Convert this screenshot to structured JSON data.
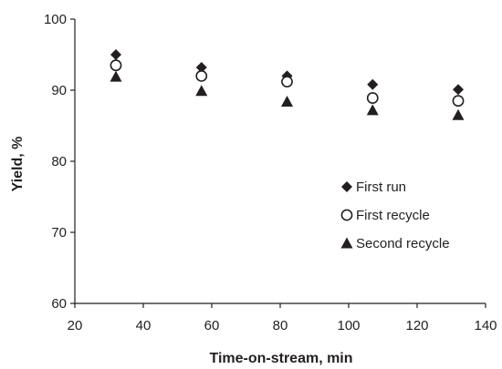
{
  "chart_data": {
    "type": "scatter",
    "title": "",
    "xlabel": "Time-on-stream, min",
    "ylabel": "Yield, %",
    "xlim": [
      20,
      140
    ],
    "ylim": [
      60,
      100
    ],
    "x_ticks": [
      "20",
      "40",
      "60",
      "80",
      "100",
      "120",
      "140"
    ],
    "y_ticks": [
      "60",
      "70",
      "80",
      "90",
      "100"
    ],
    "grid": false,
    "legend_position": "center-right",
    "series": [
      {
        "name": "First run",
        "marker": "diamond",
        "color": "#231f20",
        "x": [
          32,
          57,
          82,
          107,
          132
        ],
        "y": [
          95.0,
          93.2,
          92.0,
          90.8,
          90.1
        ]
      },
      {
        "name": "First recycle",
        "marker": "circle-open",
        "color": "#231f20",
        "x": [
          32,
          57,
          82,
          107,
          132
        ],
        "y": [
          93.5,
          92.0,
          91.2,
          88.9,
          88.5
        ]
      },
      {
        "name": "Second recycle",
        "marker": "triangle",
        "color": "#231f20",
        "x": [
          32,
          57,
          82,
          107,
          132
        ],
        "y": [
          91.9,
          89.9,
          88.4,
          87.2,
          86.5
        ]
      }
    ]
  }
}
